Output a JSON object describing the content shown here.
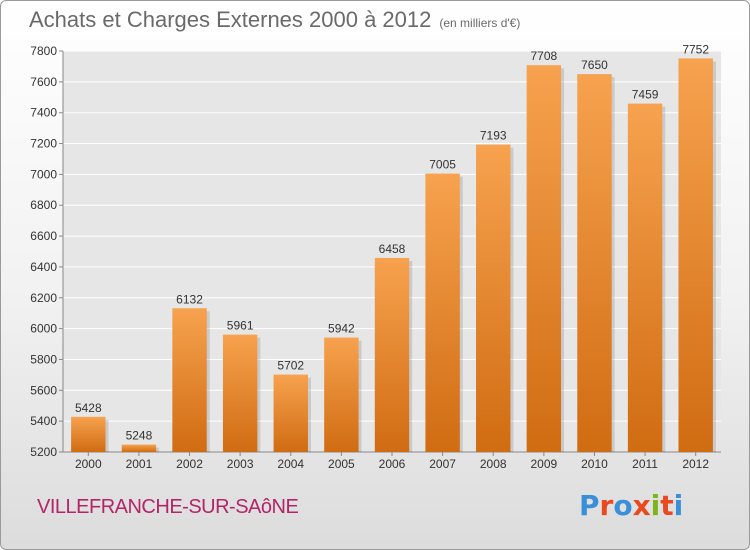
{
  "chart_data": {
    "type": "bar",
    "title": "Achats et Charges Externes 2000 à 2012",
    "subtitle": "(en milliers d'€)",
    "categories": [
      "2000",
      "2001",
      "2002",
      "2003",
      "2004",
      "2005",
      "2006",
      "2007",
      "2008",
      "2009",
      "2010",
      "2011",
      "2012"
    ],
    "values": [
      5428,
      5248,
      6132,
      5961,
      5702,
      5942,
      6458,
      7005,
      7193,
      7708,
      7650,
      7459,
      7752
    ],
    "ylim": [
      5200,
      7800
    ],
    "yticks": [
      5200,
      5400,
      5600,
      5800,
      6000,
      6200,
      6400,
      6600,
      6800,
      7000,
      7200,
      7400,
      7600,
      7800
    ],
    "grid": true,
    "xlabel": "",
    "ylabel": "",
    "colors": {
      "bar_light": "#f7a24f",
      "bar_dark": "#d06c12"
    }
  },
  "footer": {
    "city": "VILLEFRANCHE-SUR-SAôNE",
    "logo": "Proxiti",
    "logo_colors": [
      "#3a8fd8",
      "#e8491f",
      "#3a8fd8",
      "#e8491f",
      "#7ab51d",
      "#e8491f",
      "#3a8fd8"
    ]
  }
}
